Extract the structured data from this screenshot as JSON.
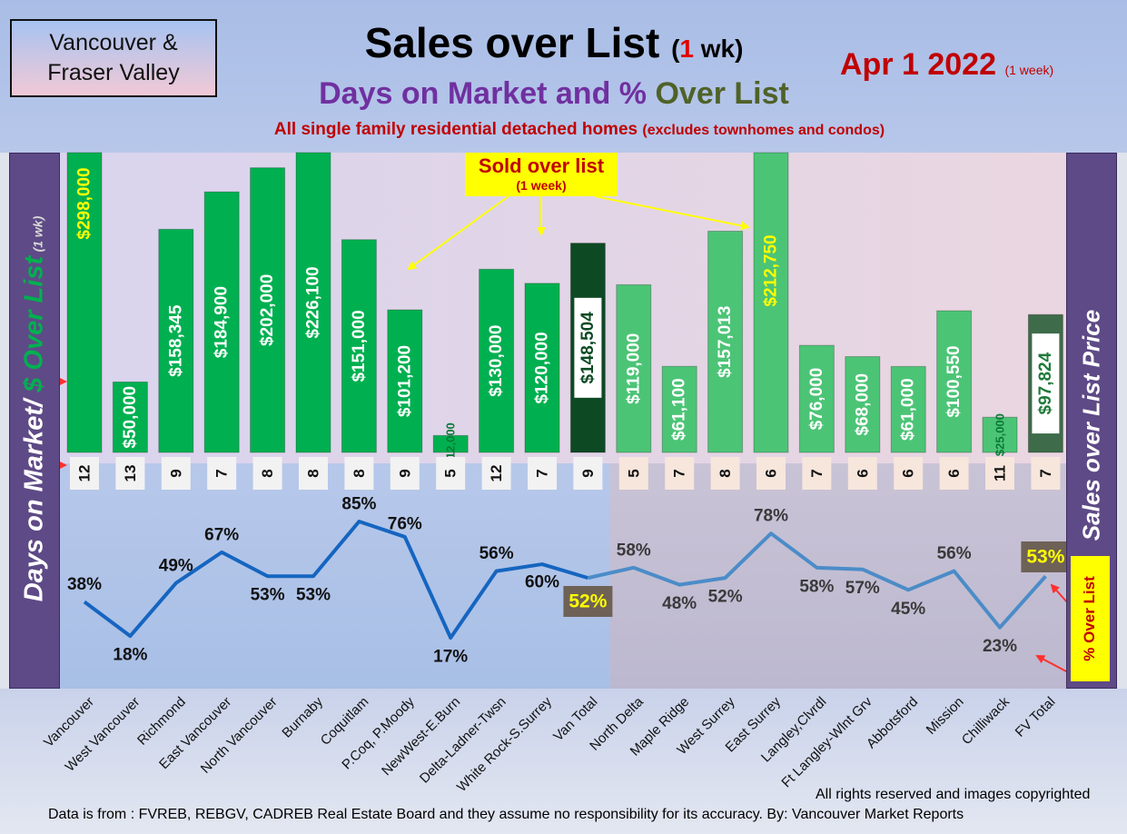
{
  "header": {
    "region_line1": "Vancouver &",
    "region_line2": "Fraser Valley",
    "title_main": "Sales over List",
    "title_open": "(",
    "title_num": "1",
    "title_close": " wk)",
    "subtitle_part1": "Days on Market and % ",
    "subtitle_part2": "Over List",
    "note_main": "All single family residential detached homes ",
    "note_paren": "(excludes townhomes and condos)",
    "date_main": "Apr 1  2022",
    "date_sub": "(1 week)"
  },
  "left_axis": {
    "part1": "Days on Market/ ",
    "part2": "$ Over List",
    "part3": "(1 wk)"
  },
  "right_axis": {
    "label": "Sales over List Price"
  },
  "callout": {
    "title": "Sold over list",
    "sub": "(1 week)"
  },
  "pct_legend": {
    "label": "% Over List"
  },
  "footer": {
    "rights": "All rights reserved and  images copyrighted",
    "source": "Data is from : FVREB, REBGV, CADREB Real Estate Board and they assume no responsibility for its accuracy. By: Vancouver Market Reports"
  },
  "colors": {
    "bar_van": "#00b050",
    "bar_van_total": "#0d4a24",
    "bar_fv": "#4cc476",
    "bar_fv_total": "#3e6b4a",
    "line_van": "#1565c0",
    "line_fv": "#4b8cc8",
    "bar_label_highlight": "#ffff00",
    "pct_legend_bg": "#ffff00",
    "pct_legend_text": "#c00000"
  },
  "chart_data": {
    "type": "bar",
    "categories": [
      "Vancouver",
      "West Vancouver",
      "Richmond",
      "East Vancouver",
      "North Vancouver",
      "Burnaby",
      "Coquitlam",
      "P.Coq, P.Moody",
      "NewWest-E.Burn",
      "Delta-Ladner-Twsn",
      "White Rock-S.Surrey",
      "Van Total",
      "North Delta",
      "Maple Ridge",
      "West Surrey",
      "East Surrey",
      "Langley,Clvrdl",
      "Ft Langley-Wlnt Grv",
      "Abbotsford",
      "Mission",
      "Chilliwack",
      "FV Total"
    ],
    "series": [
      {
        "name": "$ Over List",
        "values": [
          298000,
          50000,
          158345,
          184900,
          202000,
          226100,
          151000,
          101200,
          12000,
          130000,
          120000,
          148504,
          119000,
          61100,
          157013,
          212750,
          76000,
          68000,
          61000,
          100550,
          25000,
          97824
        ],
        "labels": [
          "$298,000",
          "$50,000",
          "$158,345",
          "$184,900",
          "$202,000",
          "$226,100",
          "$151,000",
          "$101,200",
          "$12,000",
          "$130,000",
          "$120,000",
          "$148,504",
          "$119,000",
          "$61,100",
          "$157,013",
          "$212,750",
          "$76,000",
          "$68,000",
          "$61,000",
          "$100,550",
          "$25,000",
          "$97,824"
        ]
      },
      {
        "name": "Days on Market",
        "values": [
          12,
          13,
          9,
          7,
          8,
          8,
          8,
          9,
          5,
          12,
          7,
          9,
          5,
          7,
          8,
          6,
          7,
          6,
          6,
          6,
          11,
          7
        ],
        "labels": [
          "12",
          "13",
          "9",
          "7",
          "8",
          "8",
          "8",
          "9",
          "5",
          "12",
          "7",
          "9",
          "5",
          "7",
          "8",
          "6",
          "7",
          "6",
          "6",
          "6",
          "11",
          "7"
        ]
      },
      {
        "name": "% Over List",
        "values": [
          38,
          18,
          49,
          67,
          53,
          53,
          85,
          76,
          17,
          56,
          60,
          52,
          58,
          48,
          52,
          78,
          58,
          57,
          45,
          56,
          23,
          53
        ],
        "labels": [
          "38%",
          "18%",
          "49%",
          "67%",
          "53%",
          "53%",
          "85%",
          "76%",
          "17%",
          "56%",
          "60%",
          "52%",
          "58%",
          "48%",
          "52%",
          "78%",
          "58%",
          "57%",
          "45%",
          "56%",
          "23%",
          "53%"
        ]
      }
    ],
    "legend": "none",
    "grid": false
  }
}
